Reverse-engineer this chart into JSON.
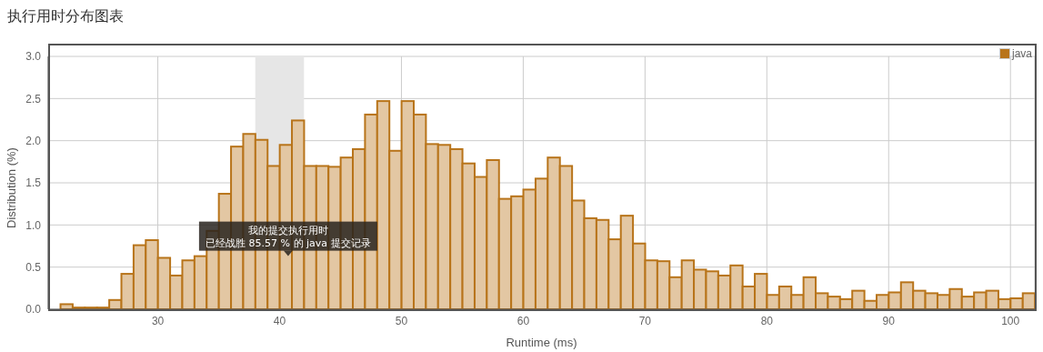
{
  "chart_data": {
    "type": "histogram",
    "title": "执行用时分布图表",
    "xlabel": "Runtime (ms)",
    "ylabel": "Distribution (%)",
    "bins": [
      22,
      23,
      24,
      25,
      26,
      27,
      28,
      29,
      30,
      31,
      32,
      33,
      34,
      35,
      36,
      37,
      38,
      39,
      40,
      41,
      42,
      43,
      44,
      45,
      46,
      47,
      48,
      49,
      50,
      51,
      52,
      53,
      54,
      55,
      56,
      57,
      58,
      59,
      60,
      61,
      62,
      63,
      64,
      65,
      66,
      67,
      68,
      69,
      70,
      71,
      72,
      73,
      74,
      75,
      76,
      77,
      78,
      79,
      80,
      81,
      82,
      83,
      84,
      85,
      86,
      87,
      88,
      89,
      90,
      91,
      92,
      93,
      94,
      95,
      96,
      97,
      98,
      99,
      100,
      101,
      102
    ],
    "series": [
      {
        "name": "java",
        "color": "#b8741a",
        "values": [
          0.06,
          0.02,
          0.02,
          0.02,
          0.11,
          0.42,
          0.76,
          0.82,
          0.61,
          0.4,
          0.58,
          0.63,
          0.93,
          1.37,
          1.93,
          2.08,
          2.01,
          1.7,
          1.95,
          2.24,
          1.7,
          1.7,
          1.69,
          1.8,
          1.9,
          2.31,
          2.47,
          1.88,
          2.47,
          2.31,
          1.96,
          1.95,
          1.9,
          1.73,
          1.57,
          1.77,
          1.31,
          1.34,
          1.42,
          1.55,
          1.8,
          1.7,
          1.29,
          1.08,
          1.06,
          0.83,
          1.11,
          0.78,
          0.58,
          0.57,
          0.38,
          0.58,
          0.47,
          0.45,
          0.4,
          0.52,
          0.27,
          0.42,
          0.17,
          0.27,
          0.17,
          0.38,
          0.19,
          0.15,
          0.12,
          0.22,
          0.1,
          0.17,
          0.2,
          0.32,
          0.22,
          0.19,
          0.17,
          0.24,
          0.15,
          0.2,
          0.22,
          0.12,
          0.13,
          0.19
        ]
      }
    ],
    "xlim": [
      21,
      102
    ],
    "xticks": [
      30,
      40,
      50,
      60,
      70,
      80,
      90,
      100
    ],
    "ylim": [
      0,
      3
    ],
    "yticks": [
      {
        "value": 0,
        "label": "0.0"
      },
      {
        "value": 0.5,
        "label": "0.5"
      },
      {
        "value": 1,
        "label": "1.0"
      },
      {
        "value": 1.5,
        "label": "1.5"
      },
      {
        "value": 2,
        "label": "2.0"
      },
      {
        "value": 2.5,
        "label": "2.5"
      },
      {
        "value": 3,
        "label": "3.0"
      }
    ],
    "bands": [
      {
        "axis": "x",
        "from": 38,
        "to": 42,
        "color": "#e6e6e6"
      }
    ],
    "annotations": [
      {
        "text": "我的提交执行用时",
        "x": 40.7,
        "y": 0.63
      },
      {
        "text": "已经战胜 85.57 % 的 java 提交记录",
        "x": 40.7,
        "y": 0.63
      }
    ],
    "grid": true,
    "legend": "top right"
  }
}
